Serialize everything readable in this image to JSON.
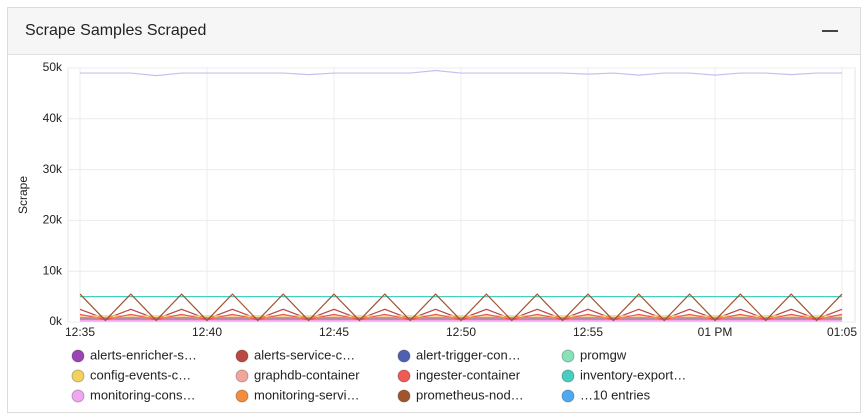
{
  "chart_data": {
    "type": "line",
    "title": "Scrape Samples Scraped",
    "y_label": "Scrape",
    "x": [
      "12:35",
      "12:36",
      "12:37",
      "12:38",
      "12:39",
      "12:40",
      "12:41",
      "12:42",
      "12:43",
      "12:44",
      "12:45",
      "12:46",
      "12:47",
      "12:48",
      "12:49",
      "12:50",
      "12:51",
      "12:52",
      "12:53",
      "12:54",
      "12:55",
      "12:56",
      "12:57",
      "12:58",
      "12:59",
      "13:00",
      "13:01",
      "13:02",
      "13:03",
      "13:04",
      "13:05"
    ],
    "xticks": [
      {
        "value": "12:35",
        "label": "12:35"
      },
      {
        "value": "12:40",
        "label": "12:40"
      },
      {
        "value": "12:45",
        "label": "12:45"
      },
      {
        "value": "12:50",
        "label": "12:50"
      },
      {
        "value": "12:55",
        "label": "12:55"
      },
      {
        "value": "13:00",
        "label": "01 PM"
      },
      {
        "value": "13:05",
        "label": "01:05"
      }
    ],
    "ylim": [
      0,
      50000
    ],
    "yticks": [
      {
        "value": 0,
        "label": "0k"
      },
      {
        "value": 10000,
        "label": "10k"
      },
      {
        "value": 20000,
        "label": "20k"
      },
      {
        "value": 30000,
        "label": "30k"
      },
      {
        "value": 40000,
        "label": "40k"
      },
      {
        "value": 50000,
        "label": "50k"
      }
    ],
    "grid": true,
    "series": [
      {
        "color": "#c5bff2",
        "values": [
          49000,
          49000,
          49000,
          48500,
          49000,
          49000,
          49000,
          49000,
          49000,
          48700,
          49000,
          49000,
          49000,
          49000,
          49500,
          49000,
          49000,
          49000,
          49000,
          49000,
          48800,
          49000,
          48600,
          49000,
          49000,
          48600,
          49000,
          49000,
          48700,
          49000,
          49000
        ]
      },
      {
        "name": "alerts-enricher-s…",
        "color": "#9b44b5",
        "values": [
          400,
          400,
          400,
          400,
          400,
          400,
          400,
          400,
          400,
          400,
          400,
          400,
          400,
          400,
          400,
          400,
          400,
          400,
          400,
          400,
          400,
          400,
          400,
          400,
          400,
          400,
          400,
          400,
          400,
          400,
          400
        ]
      },
      {
        "name": "alerts-service-c…",
        "color": "#b94a42",
        "values": [
          2500,
          600,
          2500,
          600,
          2500,
          600,
          2500,
          600,
          2500,
          600,
          2500,
          600,
          2500,
          600,
          2500,
          600,
          2500,
          600,
          2500,
          600,
          2500,
          600,
          2500,
          600,
          2500,
          600,
          2500,
          600,
          2500,
          600,
          2500
        ]
      },
      {
        "name": "alert-trigger-con…",
        "color": "#4c62b0",
        "values": [
          800,
          800,
          800,
          800,
          800,
          800,
          800,
          800,
          800,
          800,
          800,
          800,
          800,
          800,
          800,
          800,
          800,
          800,
          800,
          800,
          800,
          800,
          800,
          800,
          800,
          800,
          800,
          800,
          800,
          800,
          800
        ]
      },
      {
        "name": "promgw",
        "color": "#86e3b8",
        "values": [
          200,
          200,
          200,
          200,
          200,
          200,
          200,
          200,
          200,
          200,
          200,
          200,
          200,
          200,
          200,
          200,
          200,
          200,
          200,
          200,
          200,
          200,
          200,
          200,
          200,
          200,
          200,
          200,
          200,
          200,
          200
        ]
      },
      {
        "name": "config-events-c…",
        "color": "#f2d25c",
        "values": [
          1200,
          1200,
          1200,
          1200,
          1200,
          1200,
          1200,
          1200,
          1200,
          1200,
          1200,
          1200,
          1200,
          1200,
          1200,
          1200,
          1200,
          1200,
          1200,
          1200,
          1200,
          1200,
          1200,
          1200,
          1200,
          1200,
          1200,
          1200,
          1200,
          1200,
          1200
        ]
      },
      {
        "name": "graphdb-container",
        "color": "#f4a59b",
        "values": [
          600,
          600,
          600,
          600,
          600,
          600,
          600,
          600,
          600,
          600,
          600,
          600,
          600,
          600,
          600,
          600,
          600,
          600,
          600,
          600,
          600,
          600,
          600,
          600,
          600,
          600,
          600,
          600,
          600,
          600,
          600
        ]
      },
      {
        "name": "ingester-container",
        "color": "#ef5a52",
        "values": [
          1500,
          500,
          1500,
          500,
          1500,
          500,
          1500,
          500,
          1500,
          500,
          1500,
          500,
          1500,
          500,
          1500,
          500,
          1500,
          500,
          1500,
          500,
          1500,
          500,
          1500,
          500,
          1500,
          500,
          1500,
          500,
          1500,
          500,
          1500
        ]
      },
      {
        "name": "inventory-export…",
        "color": "#45cfc0",
        "values": [
          5000,
          5000,
          5000,
          5000,
          5000,
          5000,
          5000,
          5000,
          5000,
          5000,
          5000,
          5000,
          5000,
          5000,
          5000,
          5000,
          5000,
          5000,
          5000,
          5000,
          5000,
          5000,
          5000,
          5000,
          5000,
          5000,
          5000,
          5000,
          5000,
          5000,
          5000
        ]
      },
      {
        "name": "monitoring-cons…",
        "color": "#f0a6f2",
        "values": [
          300,
          300,
          300,
          300,
          300,
          300,
          300,
          300,
          300,
          300,
          300,
          300,
          300,
          300,
          300,
          300,
          300,
          300,
          300,
          300,
          300,
          300,
          300,
          300,
          300,
          300,
          300,
          300,
          300,
          300,
          300
        ]
      },
      {
        "name": "monitoring-servi…",
        "color": "#f58b3c",
        "values": [
          900,
          900,
          900,
          900,
          900,
          900,
          900,
          900,
          900,
          900,
          900,
          900,
          900,
          900,
          900,
          900,
          900,
          900,
          900,
          900,
          900,
          900,
          900,
          900,
          900,
          900,
          900,
          900,
          900,
          900,
          900
        ]
      },
      {
        "name": "prometheus-nod…",
        "color": "#a0552f",
        "values": [
          5500,
          300,
          5500,
          300,
          5500,
          300,
          5500,
          300,
          5500,
          300,
          5500,
          300,
          5500,
          300,
          5500,
          300,
          5500,
          300,
          5500,
          300,
          5500,
          300,
          5500,
          300,
          5500,
          300,
          5500,
          300,
          5500,
          300,
          5500
        ]
      }
    ],
    "legend_more": {
      "label": "…10 entries",
      "color": "#4daaf2"
    }
  }
}
